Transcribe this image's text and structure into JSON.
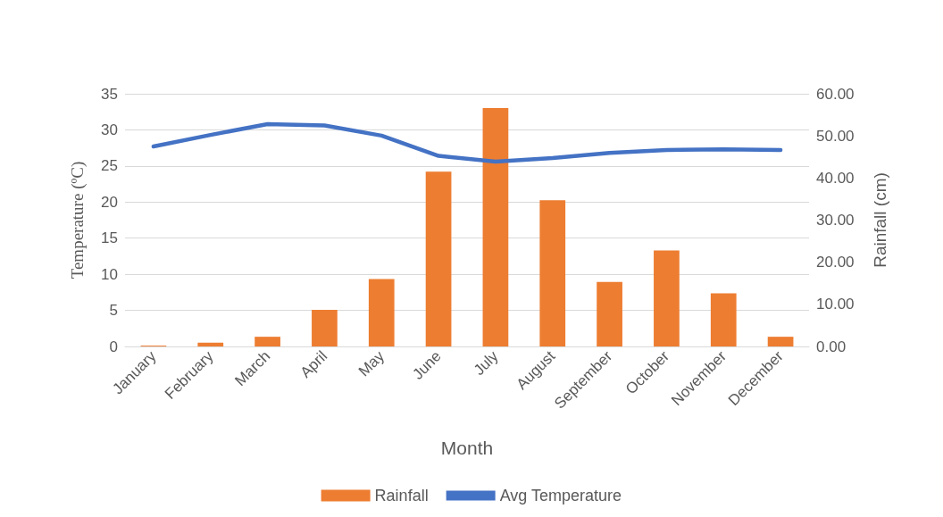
{
  "chart_data": {
    "type": "bar",
    "xlabel": "Month",
    "ylabel": "Temperature (ºC)",
    "y2label": "Rainfall (cm)",
    "categories": [
      "January",
      "February",
      "March",
      "April",
      "May",
      "June",
      "July",
      "August",
      "September",
      "October",
      "November",
      "December"
    ],
    "series": [
      {
        "name": "Rainfall",
        "axis": "y2",
        "color": "#ed7d31",
        "values": [
          0.2,
          0.9,
          2.3,
          8.7,
          16.0,
          41.5,
          56.6,
          34.7,
          15.3,
          22.8,
          12.6,
          2.3
        ]
      },
      {
        "name": "Avg Temperature",
        "type": "line",
        "axis": "y",
        "color": "#4472c4",
        "marker": "none",
        "values": [
          27.7,
          29.3,
          30.8,
          30.6,
          29.2,
          26.4,
          25.6,
          26.1,
          26.8,
          27.2,
          27.3,
          27.2
        ]
      }
    ],
    "ylim": [
      0,
      35
    ],
    "yticks": [
      0,
      5,
      10,
      15,
      20,
      25,
      30,
      35
    ],
    "y2lim": [
      0,
      60
    ],
    "y2ticks": [
      {
        "value": 0,
        "label": "0.00"
      },
      {
        "value": 10,
        "label": "10.00"
      },
      {
        "value": 20,
        "label": "20.00"
      },
      {
        "value": 30,
        "label": "30.00"
      },
      {
        "value": 40,
        "label": "40.00"
      },
      {
        "value": 50,
        "label": "50.00"
      },
      {
        "value": 60,
        "label": "60.00"
      }
    ],
    "grid": "y",
    "legend": "bottom"
  }
}
